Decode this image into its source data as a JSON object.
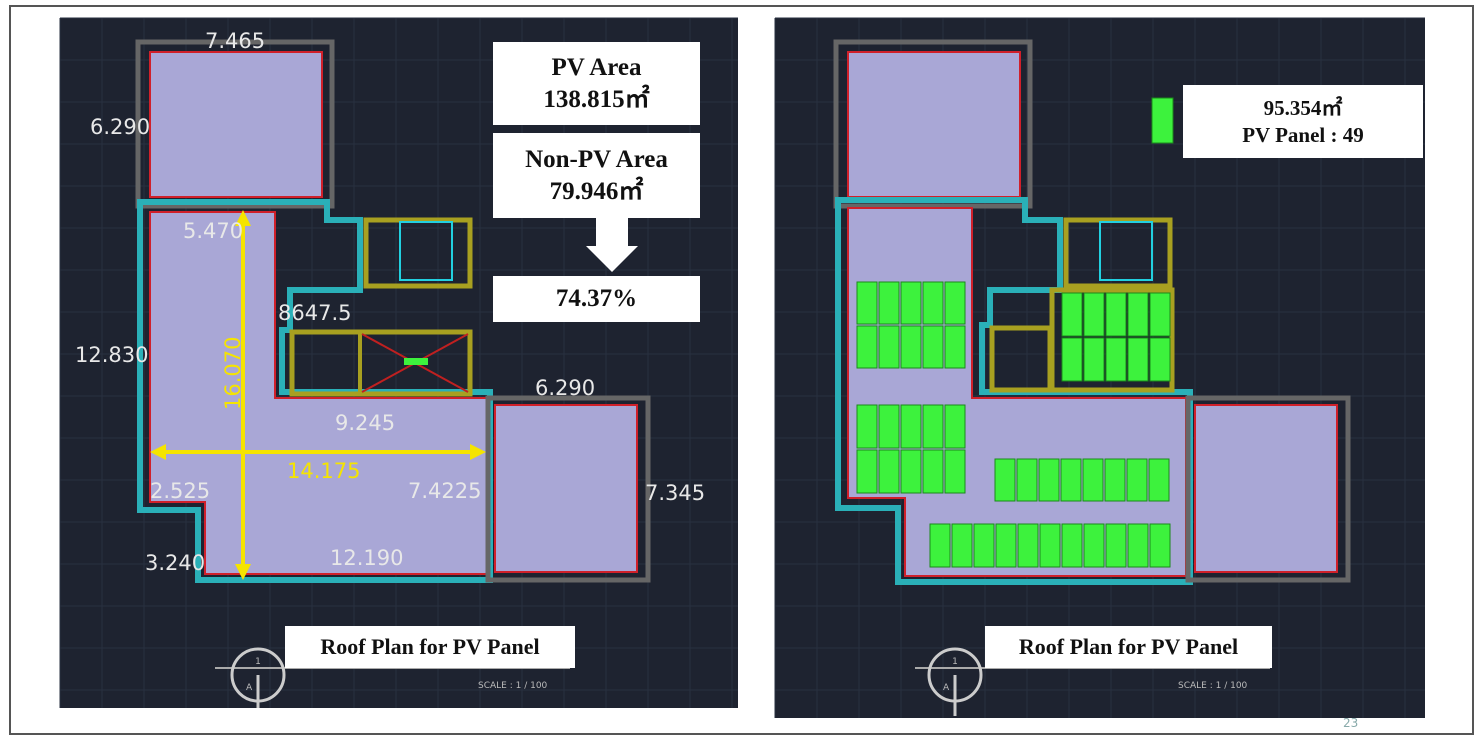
{
  "left_plan": {
    "dimensions": [
      "7.465",
      "6.290",
      "5.470",
      "12.830",
      "8647.5",
      "16.070",
      "9.245",
      "14.175",
      "2.525",
      "7.4225",
      "3.240",
      "12.190",
      "6.290",
      "7.345"
    ],
    "pv_area_label": "PV Area",
    "pv_area_value": "138.815㎡",
    "non_pv_area_label": "Non-PV Area",
    "non_pv_area_value": "79.946㎡",
    "ratio": "74.37%",
    "caption": "Roof Plan for PV Panel",
    "section_marker_top": "1",
    "section_marker_bottom": "A",
    "scale": "SCALE : 1 / 100"
  },
  "right_plan": {
    "panel_area": "95.354㎡",
    "panel_count_label": "PV Panel : 49",
    "caption": "Roof Plan for PV Panel",
    "section_marker_top": "1",
    "section_marker_bottom": "A",
    "scale": "SCALE : 1 / 100",
    "page_number": "23"
  },
  "colors": {
    "background": "#1e2330",
    "roof_fill": "#a9a7d6",
    "roof_outline": "#d0202a",
    "parapet": "#2ab0b8",
    "core_walls": "#a8a020",
    "pv_panel": "#3df23d",
    "dimension_arrows": "#f5e400"
  }
}
